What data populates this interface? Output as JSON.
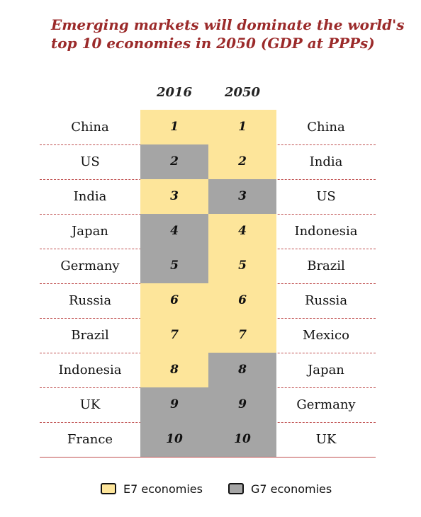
{
  "chart_data": {
    "type": "table",
    "title": "Emerging markets will dominate the world's top 10 economies in 2050 (GDP at PPPs)",
    "columns": [
      "2016",
      "2050"
    ],
    "rows": [
      {
        "left_country": "China",
        "rank_2016": "1",
        "group_2016": "E7",
        "rank_2050": "1",
        "group_2050": "E7",
        "right_country": "China"
      },
      {
        "left_country": "US",
        "rank_2016": "2",
        "group_2016": "G7",
        "rank_2050": "2",
        "group_2050": "E7",
        "right_country": "India"
      },
      {
        "left_country": "India",
        "rank_2016": "3",
        "group_2016": "E7",
        "rank_2050": "3",
        "group_2050": "G7",
        "right_country": "US"
      },
      {
        "left_country": "Japan",
        "rank_2016": "4",
        "group_2016": "G7",
        "rank_2050": "4",
        "group_2050": "E7",
        "right_country": "Indonesia"
      },
      {
        "left_country": "Germany",
        "rank_2016": "5",
        "group_2016": "G7",
        "rank_2050": "5",
        "group_2050": "E7",
        "right_country": "Brazil"
      },
      {
        "left_country": "Russia",
        "rank_2016": "6",
        "group_2016": "E7",
        "rank_2050": "6",
        "group_2050": "E7",
        "right_country": "Russia"
      },
      {
        "left_country": "Brazil",
        "rank_2016": "7",
        "group_2016": "E7",
        "rank_2050": "7",
        "group_2050": "E7",
        "right_country": "Mexico"
      },
      {
        "left_country": "Indonesia",
        "rank_2016": "8",
        "group_2016": "E7",
        "rank_2050": "8",
        "group_2050": "G7",
        "right_country": "Japan"
      },
      {
        "left_country": "UK",
        "rank_2016": "9",
        "group_2016": "G7",
        "rank_2050": "9",
        "group_2050": "G7",
        "right_country": "Germany"
      },
      {
        "left_country": "France",
        "rank_2016": "10",
        "group_2016": "G7",
        "rank_2050": "10",
        "group_2050": "G7",
        "right_country": "UK"
      }
    ],
    "legend": [
      {
        "key": "E7",
        "label": "E7 economies",
        "color": "#fde59a"
      },
      {
        "key": "G7",
        "label": "G7 economies",
        "color": "#a5a5a5"
      }
    ]
  }
}
